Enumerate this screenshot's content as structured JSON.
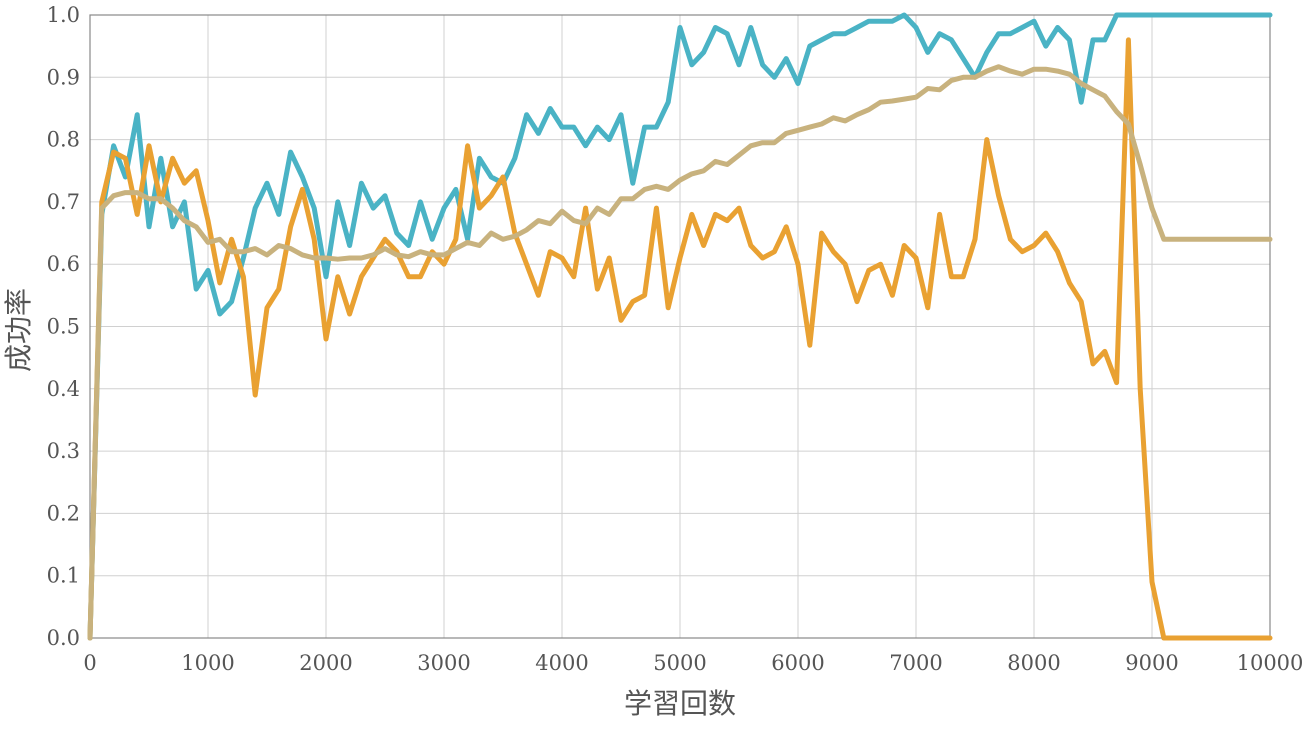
{
  "chart_data": {
    "type": "line",
    "xlabel": "学習回数",
    "ylabel": "成功率",
    "xlim": [
      0,
      10000
    ],
    "ylim": [
      0,
      1
    ],
    "xticks": [
      0,
      1000,
      2000,
      3000,
      4000,
      5000,
      6000,
      7000,
      8000,
      9000,
      10000
    ],
    "yticks": [
      "0.0",
      "0.1",
      "0.2",
      "0.3",
      "0.4",
      "0.5",
      "0.6",
      "0.7",
      "0.8",
      "0.9",
      "1.0"
    ],
    "grid": true,
    "legend": "none",
    "series": [
      {
        "color": "#4ab3c5",
        "points": [
          [
            0,
            0
          ],
          [
            100,
            0.68
          ],
          [
            200,
            0.79
          ],
          [
            300,
            0.74
          ],
          [
            400,
            0.84
          ],
          [
            500,
            0.66
          ],
          [
            600,
            0.77
          ],
          [
            700,
            0.66
          ],
          [
            800,
            0.7
          ],
          [
            900,
            0.56
          ],
          [
            1000,
            0.59
          ],
          [
            1100,
            0.52
          ],
          [
            1200,
            0.54
          ],
          [
            1300,
            0.61
          ],
          [
            1400,
            0.69
          ],
          [
            1500,
            0.73
          ],
          [
            1600,
            0.68
          ],
          [
            1700,
            0.78
          ],
          [
            1800,
            0.74
          ],
          [
            1900,
            0.69
          ],
          [
            2000,
            0.58
          ],
          [
            2100,
            0.7
          ],
          [
            2200,
            0.63
          ],
          [
            2300,
            0.73
          ],
          [
            2400,
            0.69
          ],
          [
            2500,
            0.71
          ],
          [
            2600,
            0.65
          ],
          [
            2700,
            0.63
          ],
          [
            2800,
            0.7
          ],
          [
            2900,
            0.64
          ],
          [
            3000,
            0.69
          ],
          [
            3100,
            0.72
          ],
          [
            3200,
            0.64
          ],
          [
            3300,
            0.77
          ],
          [
            3400,
            0.74
          ],
          [
            3500,
            0.73
          ],
          [
            3600,
            0.77
          ],
          [
            3700,
            0.84
          ],
          [
            3800,
            0.81
          ],
          [
            3900,
            0.85
          ],
          [
            4000,
            0.82
          ],
          [
            4100,
            0.82
          ],
          [
            4200,
            0.79
          ],
          [
            4300,
            0.82
          ],
          [
            4400,
            0.8
          ],
          [
            4500,
            0.84
          ],
          [
            4600,
            0.73
          ],
          [
            4700,
            0.82
          ],
          [
            4800,
            0.82
          ],
          [
            4900,
            0.86
          ],
          [
            5000,
            0.98
          ],
          [
            5100,
            0.92
          ],
          [
            5200,
            0.94
          ],
          [
            5300,
            0.98
          ],
          [
            5400,
            0.97
          ],
          [
            5500,
            0.92
          ],
          [
            5600,
            0.98
          ],
          [
            5700,
            0.92
          ],
          [
            5800,
            0.9
          ],
          [
            5900,
            0.93
          ],
          [
            6000,
            0.89
          ],
          [
            6100,
            0.95
          ],
          [
            6200,
            0.96
          ],
          [
            6300,
            0.97
          ],
          [
            6400,
            0.97
          ],
          [
            6500,
            0.98
          ],
          [
            6600,
            0.99
          ],
          [
            6700,
            0.99
          ],
          [
            6800,
            0.99
          ],
          [
            6900,
            1.0
          ],
          [
            7000,
            0.98
          ],
          [
            7100,
            0.94
          ],
          [
            7200,
            0.97
          ],
          [
            7300,
            0.96
          ],
          [
            7400,
            0.93
          ],
          [
            7500,
            0.9
          ],
          [
            7600,
            0.94
          ],
          [
            7700,
            0.97
          ],
          [
            7800,
            0.97
          ],
          [
            7900,
            0.98
          ],
          [
            8000,
            0.99
          ],
          [
            8100,
            0.95
          ],
          [
            8200,
            0.98
          ],
          [
            8300,
            0.96
          ],
          [
            8400,
            0.86
          ],
          [
            8500,
            0.96
          ],
          [
            8600,
            0.96
          ],
          [
            8700,
            1.0
          ],
          [
            8800,
            1.0
          ],
          [
            8900,
            1.0
          ],
          [
            9000,
            1.0
          ],
          [
            9100,
            1.0
          ],
          [
            9200,
            1.0
          ],
          [
            9300,
            1.0
          ],
          [
            9400,
            1.0
          ],
          [
            9500,
            1.0
          ],
          [
            9600,
            1.0
          ],
          [
            9700,
            1.0
          ],
          [
            9800,
            1.0
          ],
          [
            9900,
            1.0
          ],
          [
            10000,
            1.0
          ]
        ]
      },
      {
        "color": "#e9a132",
        "points": [
          [
            0,
            0
          ],
          [
            100,
            0.7
          ],
          [
            200,
            0.78
          ],
          [
            300,
            0.77
          ],
          [
            400,
            0.68
          ],
          [
            500,
            0.79
          ],
          [
            600,
            0.7
          ],
          [
            700,
            0.77
          ],
          [
            800,
            0.73
          ],
          [
            900,
            0.75
          ],
          [
            1000,
            0.67
          ],
          [
            1100,
            0.57
          ],
          [
            1200,
            0.64
          ],
          [
            1300,
            0.58
          ],
          [
            1400,
            0.39
          ],
          [
            1500,
            0.53
          ],
          [
            1600,
            0.56
          ],
          [
            1700,
            0.66
          ],
          [
            1800,
            0.72
          ],
          [
            1900,
            0.64
          ],
          [
            2000,
            0.48
          ],
          [
            2100,
            0.58
          ],
          [
            2200,
            0.52
          ],
          [
            2300,
            0.58
          ],
          [
            2400,
            0.61
          ],
          [
            2500,
            0.64
          ],
          [
            2600,
            0.62
          ],
          [
            2700,
            0.58
          ],
          [
            2800,
            0.58
          ],
          [
            2900,
            0.62
          ],
          [
            3000,
            0.6
          ],
          [
            3100,
            0.64
          ],
          [
            3200,
            0.79
          ],
          [
            3300,
            0.69
          ],
          [
            3400,
            0.71
          ],
          [
            3500,
            0.74
          ],
          [
            3600,
            0.65
          ],
          [
            3700,
            0.6
          ],
          [
            3800,
            0.55
          ],
          [
            3900,
            0.62
          ],
          [
            4000,
            0.61
          ],
          [
            4100,
            0.58
          ],
          [
            4200,
            0.69
          ],
          [
            4300,
            0.56
          ],
          [
            4400,
            0.61
          ],
          [
            4500,
            0.51
          ],
          [
            4600,
            0.54
          ],
          [
            4700,
            0.55
          ],
          [
            4800,
            0.69
          ],
          [
            4900,
            0.53
          ],
          [
            5000,
            0.61
          ],
          [
            5100,
            0.68
          ],
          [
            5200,
            0.63
          ],
          [
            5300,
            0.68
          ],
          [
            5400,
            0.67
          ],
          [
            5500,
            0.69
          ],
          [
            5600,
            0.63
          ],
          [
            5700,
            0.61
          ],
          [
            5800,
            0.62
          ],
          [
            5900,
            0.66
          ],
          [
            6000,
            0.6
          ],
          [
            6100,
            0.47
          ],
          [
            6200,
            0.65
          ],
          [
            6300,
            0.62
          ],
          [
            6400,
            0.6
          ],
          [
            6500,
            0.54
          ],
          [
            6600,
            0.59
          ],
          [
            6700,
            0.6
          ],
          [
            6800,
            0.55
          ],
          [
            6900,
            0.63
          ],
          [
            7000,
            0.61
          ],
          [
            7100,
            0.53
          ],
          [
            7200,
            0.68
          ],
          [
            7300,
            0.58
          ],
          [
            7400,
            0.58
          ],
          [
            7500,
            0.64
          ],
          [
            7600,
            0.8
          ],
          [
            7700,
            0.71
          ],
          [
            7800,
            0.64
          ],
          [
            7900,
            0.62
          ],
          [
            8000,
            0.63
          ],
          [
            8100,
            0.65
          ],
          [
            8200,
            0.62
          ],
          [
            8300,
            0.57
          ],
          [
            8400,
            0.54
          ],
          [
            8500,
            0.44
          ],
          [
            8600,
            0.46
          ],
          [
            8700,
            0.41
          ],
          [
            8800,
            0.96
          ],
          [
            8900,
            0.4
          ],
          [
            9000,
            0.09
          ],
          [
            9100,
            0.0
          ],
          [
            9200,
            0.0
          ],
          [
            9300,
            0.0
          ],
          [
            9400,
            0.0
          ],
          [
            9500,
            0.0
          ],
          [
            9600,
            0.0
          ],
          [
            9700,
            0.0
          ],
          [
            9800,
            0.0
          ],
          [
            9900,
            0.0
          ],
          [
            10000,
            0.0
          ]
        ]
      },
      {
        "color": "#c8b27e",
        "points": [
          [
            0,
            0
          ],
          [
            100,
            0.69
          ],
          [
            200,
            0.71
          ],
          [
            300,
            0.715
          ],
          [
            400,
            0.715
          ],
          [
            500,
            0.705
          ],
          [
            600,
            0.705
          ],
          [
            700,
            0.69
          ],
          [
            800,
            0.67
          ],
          [
            900,
            0.66
          ],
          [
            1000,
            0.635
          ],
          [
            1100,
            0.64
          ],
          [
            1200,
            0.62
          ],
          [
            1300,
            0.62
          ],
          [
            1400,
            0.625
          ],
          [
            1500,
            0.615
          ],
          [
            1600,
            0.63
          ],
          [
            1700,
            0.625
          ],
          [
            1800,
            0.615
          ],
          [
            1900,
            0.61
          ],
          [
            2000,
            0.61
          ],
          [
            2100,
            0.608
          ],
          [
            2200,
            0.61
          ],
          [
            2300,
            0.61
          ],
          [
            2400,
            0.615
          ],
          [
            2500,
            0.625
          ],
          [
            2600,
            0.615
          ],
          [
            2700,
            0.612
          ],
          [
            2800,
            0.62
          ],
          [
            2900,
            0.615
          ],
          [
            3000,
            0.615
          ],
          [
            3100,
            0.625
          ],
          [
            3200,
            0.635
          ],
          [
            3300,
            0.63
          ],
          [
            3400,
            0.65
          ],
          [
            3500,
            0.64
          ],
          [
            3600,
            0.645
          ],
          [
            3700,
            0.655
          ],
          [
            3800,
            0.67
          ],
          [
            3900,
            0.665
          ],
          [
            4000,
            0.685
          ],
          [
            4100,
            0.67
          ],
          [
            4200,
            0.665
          ],
          [
            4300,
            0.69
          ],
          [
            4400,
            0.68
          ],
          [
            4500,
            0.705
          ],
          [
            4600,
            0.705
          ],
          [
            4700,
            0.72
          ],
          [
            4800,
            0.725
          ],
          [
            4900,
            0.72
          ],
          [
            5000,
            0.735
          ],
          [
            5100,
            0.745
          ],
          [
            5200,
            0.75
          ],
          [
            5300,
            0.765
          ],
          [
            5400,
            0.76
          ],
          [
            5500,
            0.775
          ],
          [
            5600,
            0.79
          ],
          [
            5700,
            0.795
          ],
          [
            5800,
            0.795
          ],
          [
            5900,
            0.81
          ],
          [
            6000,
            0.815
          ],
          [
            6100,
            0.82
          ],
          [
            6200,
            0.825
          ],
          [
            6300,
            0.835
          ],
          [
            6400,
            0.83
          ],
          [
            6500,
            0.84
          ],
          [
            6600,
            0.848
          ],
          [
            6700,
            0.86
          ],
          [
            6800,
            0.862
          ],
          [
            6900,
            0.865
          ],
          [
            7000,
            0.868
          ],
          [
            7100,
            0.882
          ],
          [
            7200,
            0.88
          ],
          [
            7300,
            0.895
          ],
          [
            7400,
            0.9
          ],
          [
            7500,
            0.9
          ],
          [
            7600,
            0.91
          ],
          [
            7700,
            0.917
          ],
          [
            7800,
            0.91
          ],
          [
            7900,
            0.905
          ],
          [
            8000,
            0.913
          ],
          [
            8100,
            0.913
          ],
          [
            8200,
            0.91
          ],
          [
            8300,
            0.905
          ],
          [
            8400,
            0.89
          ],
          [
            8500,
            0.88
          ],
          [
            8600,
            0.87
          ],
          [
            8700,
            0.845
          ],
          [
            8800,
            0.825
          ],
          [
            8900,
            0.76
          ],
          [
            9000,
            0.69
          ],
          [
            9100,
            0.64
          ],
          [
            9200,
            0.64
          ],
          [
            9300,
            0.64
          ],
          [
            9400,
            0.64
          ],
          [
            9500,
            0.64
          ],
          [
            9600,
            0.64
          ],
          [
            9700,
            0.64
          ],
          [
            9800,
            0.64
          ],
          [
            9900,
            0.64
          ],
          [
            10000,
            0.64
          ]
        ]
      }
    ]
  }
}
